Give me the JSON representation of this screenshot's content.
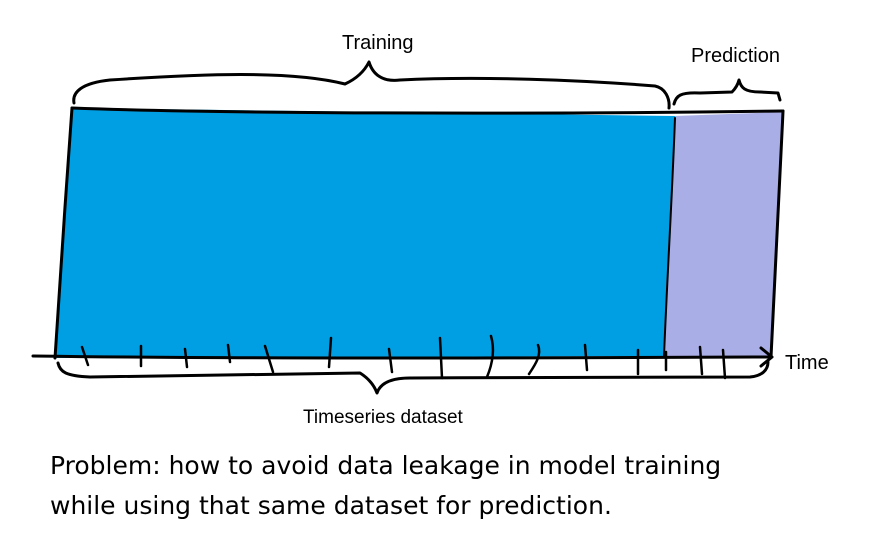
{
  "labels": {
    "training": "Training",
    "prediction": "Prediction",
    "time": "Time",
    "dataset": "Timeseries dataset"
  },
  "caption": {
    "line1": "Problem: how to avoid data leakage in model training",
    "line2": "while using that same dataset for prediction."
  },
  "colors": {
    "training_region": "#009fe3",
    "prediction_region": "#aaaee6",
    "ink": "#000000"
  }
}
